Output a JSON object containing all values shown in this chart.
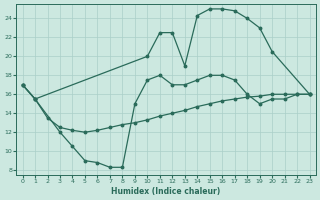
{
  "xlabel": "Humidex (Indice chaleur)",
  "bg_color": "#cce8e0",
  "grid_color": "#aacfc8",
  "line_color": "#2a6b5a",
  "xlim": [
    -0.5,
    23.5
  ],
  "ylim": [
    7.5,
    25.5
  ],
  "yticks": [
    8,
    10,
    12,
    14,
    16,
    18,
    20,
    22,
    24
  ],
  "xticks": [
    0,
    1,
    2,
    3,
    4,
    5,
    6,
    7,
    8,
    9,
    10,
    11,
    12,
    13,
    14,
    15,
    16,
    17,
    18,
    19,
    20,
    21,
    22,
    23
  ],
  "line1_x": [
    0,
    1,
    10,
    11,
    12,
    13,
    14,
    15,
    16,
    17,
    18,
    19,
    20,
    23
  ],
  "line1_y": [
    17.0,
    15.5,
    20.0,
    22.5,
    22.5,
    19.0,
    24.3,
    25.0,
    25.0,
    24.8,
    24.0,
    23.0,
    20.5,
    16.0
  ],
  "line2_x": [
    0,
    1,
    3,
    4,
    5,
    6,
    7,
    8,
    9,
    10,
    11,
    12,
    13,
    14,
    15,
    16,
    17,
    18,
    19,
    20,
    21,
    22,
    23
  ],
  "line2_y": [
    17.0,
    15.5,
    12.0,
    10.5,
    9.0,
    8.8,
    8.3,
    8.3,
    15.0,
    17.5,
    18.0,
    17.0,
    17.0,
    17.5,
    18.0,
    18.0,
    17.5,
    16.0,
    15.0,
    15.5,
    15.5,
    16.0,
    16.0
  ],
  "line3_x": [
    0,
    1,
    2,
    3,
    4,
    5,
    6,
    7,
    8,
    9,
    10,
    11,
    12,
    13,
    14,
    15,
    16,
    17,
    18,
    19,
    20,
    21,
    22,
    23
  ],
  "line3_y": [
    17.0,
    15.5,
    13.5,
    12.5,
    12.2,
    12.0,
    12.2,
    12.5,
    12.8,
    13.0,
    13.3,
    13.7,
    14.0,
    14.3,
    14.7,
    15.0,
    15.3,
    15.5,
    15.7,
    15.8,
    16.0,
    16.0,
    16.0,
    16.0
  ]
}
